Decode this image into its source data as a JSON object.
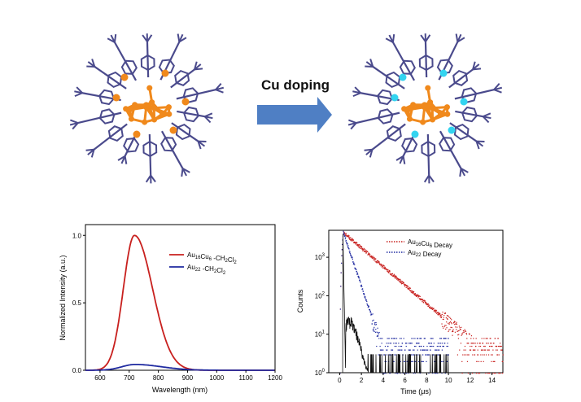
{
  "figure": {
    "arrow_label": "Cu doping",
    "colors": {
      "arrow": "#4f7fc4",
      "gold": "#f0891c",
      "ligand": "#4a4a8c",
      "copper": "#33d4f0"
    },
    "structure_icons": [
      "cluster-structure-left",
      "cluster-structure-right"
    ]
  },
  "chart_data": [
    {
      "type": "line",
      "xlabel": "Wavelength (nm)",
      "ylabel": "Normalized Intensity (a.u.)",
      "xlim": [
        550,
        1200
      ],
      "ylim": [
        0,
        1.08
      ],
      "xticks": [
        "600",
        "700",
        "800",
        "900",
        "1000",
        "1100",
        "1200"
      ],
      "yticks": [
        "0.0",
        "0.5",
        "1.0"
      ],
      "legend_position": "top-right",
      "grid": false,
      "series": [
        {
          "name": "Au16Cu6 -CH2Cl2",
          "color": "#c8201e",
          "peak": 718,
          "amplitude": 1.0,
          "sigma_left": 38,
          "sigma_right": 62,
          "x": [
            550,
            600,
            640,
            660,
            680,
            700,
            718,
            740,
            760,
            780,
            800,
            830,
            860,
            900,
            950,
            1000,
            1100,
            1200
          ],
          "y": [
            0,
            0.0,
            0.05,
            0.17,
            0.5,
            0.86,
            1.0,
            0.92,
            0.74,
            0.55,
            0.37,
            0.17,
            0.07,
            0.02,
            0.005,
            0,
            0,
            0
          ]
        },
        {
          "name": "Au22 -CH2Cl2",
          "color": "#1f2aa0",
          "peak": 720,
          "amplitude": 0.043,
          "sigma_left": 45,
          "sigma_right": 90,
          "x": [
            550,
            600,
            650,
            700,
            720,
            760,
            800,
            850,
            900,
            1000,
            1100,
            1200
          ],
          "y": [
            0,
            0.0,
            0.015,
            0.038,
            0.043,
            0.037,
            0.026,
            0.014,
            0.006,
            0.001,
            0,
            0
          ]
        }
      ],
      "legend": [
        {
          "base": "Au",
          "sub1": "16",
          "mid": "Cu",
          "sub2": "6",
          "tail": " -CH",
          "sub3": "2",
          "tail2": "Cl",
          "sub4": "2"
        },
        {
          "base": "Au",
          "sub1": "22",
          "mid": "",
          "sub2": "",
          "tail": " -CH",
          "sub3": "2",
          "tail2": "Cl",
          "sub4": "2"
        }
      ]
    },
    {
      "type": "scatter",
      "xlabel": "Time (μs)",
      "ylabel": "Counts",
      "xlim": [
        -1,
        15
      ],
      "ylim_log10": [
        0,
        3.7
      ],
      "log_y": true,
      "xticks": [
        "0",
        "2",
        "4",
        "6",
        "8",
        "10",
        "12",
        "14"
      ],
      "yticks": [
        {
          "base": "10",
          "exp": "0"
        },
        {
          "base": "10",
          "exp": "1"
        },
        {
          "base": "10",
          "exp": "2"
        },
        {
          "base": "10",
          "exp": "3"
        }
      ],
      "legend_position": "top-right",
      "grid": false,
      "series": [
        {
          "name": "Au16Cu6 Decay",
          "color": "#c8201e",
          "peak_time": 0.3,
          "peak_counts": 4500,
          "tau": 1.8,
          "end_time": 15
        },
        {
          "name": "Au22 Decay",
          "color": "#1f2aa0",
          "peak_time": 0.3,
          "peak_counts": 4500,
          "tau": 0.52,
          "end_time": 10
        },
        {
          "name": "IRF",
          "color": "#111111",
          "peak_time": 0.3,
          "peak_counts": 4000,
          "end_time": 10
        }
      ],
      "legend": [
        {
          "base": "Au",
          "sub1": "16",
          "mid": "Cu",
          "sub2": "6",
          "tail": " Decay"
        },
        {
          "base": "Au",
          "sub1": "22",
          "mid": "",
          "sub2": "",
          "tail": " Decay"
        }
      ]
    }
  ]
}
